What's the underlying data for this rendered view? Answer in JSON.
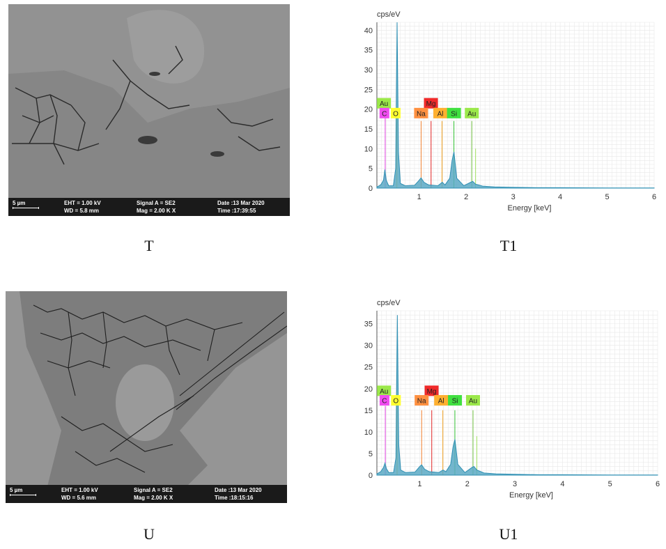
{
  "panels": [
    {
      "caption": "T",
      "sem": {
        "scale": "5 µm",
        "eht": "EHT =  1.00 kV",
        "wd": "WD =  5.8 mm",
        "signal": "Signal A = SE2",
        "mag": "Mag =    2.00 K X",
        "date": "Date :13 Mar 2020",
        "time": "Time :17:39:55"
      }
    },
    {
      "caption": "U",
      "sem": {
        "scale": "5 µm",
        "eht": "EHT =  1.00 kV",
        "wd": "WD =  5.6 mm",
        "signal": "Signal A = SE2",
        "mag": "Mag =    2.00 K X",
        "date": "Date :13 Mar 2020",
        "time": "Time :18:15:16"
      }
    }
  ],
  "chart_data": [
    {
      "caption": "T1",
      "type": "line",
      "ylabel": "cps/eV",
      "xlabel": "Energy [keV]",
      "xlim": [
        0.1,
        6
      ],
      "ylim": [
        0,
        42
      ],
      "xticks": [
        1,
        2,
        3,
        4,
        5,
        6
      ],
      "yticks": [
        0,
        5,
        10,
        15,
        20,
        25,
        30,
        35,
        40
      ],
      "grid": true,
      "fill_color": "#5aa9c4",
      "line_color": "#2e8fb3",
      "x": [
        0.1,
        0.18,
        0.24,
        0.27,
        0.3,
        0.35,
        0.45,
        0.5,
        0.53,
        0.56,
        0.6,
        0.7,
        0.9,
        1.0,
        1.04,
        1.1,
        1.2,
        1.4,
        1.49,
        1.55,
        1.65,
        1.7,
        1.74,
        1.8,
        1.95,
        2.1,
        2.14,
        2.2,
        2.35,
        2.6,
        3.0,
        3.5,
        4.0,
        5.0,
        6.0
      ],
      "series": [
        {
          "values": [
            0.3,
            0.8,
            2,
            4.7,
            2,
            0.6,
            0.6,
            5,
            42,
            9,
            1.2,
            0.6,
            0.7,
            2,
            2.6,
            1.5,
            0.8,
            0.6,
            1.5,
            0.8,
            2.5,
            7,
            9.2,
            2.5,
            0.6,
            1.5,
            1.7,
            1,
            0.5,
            0.3,
            0.2,
            0.1,
            0.1,
            0.05,
            0.05
          ]
        }
      ],
      "element_lines": [
        {
          "label": "C",
          "x": 0.277,
          "color": "#e040e0",
          "height": 19
        },
        {
          "label": "O",
          "x": 0.525,
          "color": "#e0d000",
          "height": 19
        },
        {
          "label": "Na",
          "x": 1.041,
          "color": "#f08030",
          "height": 17
        },
        {
          "label": "Mg",
          "x": 1.253,
          "color": "#e02020",
          "height": 17
        },
        {
          "label": "Al",
          "x": 1.486,
          "color": "#f0a020",
          "height": 17
        },
        {
          "label": "Si",
          "x": 1.739,
          "color": "#30c030",
          "height": 17
        },
        {
          "label": "Au",
          "x": 2.12,
          "color": "#70c040",
          "height": 17
        },
        {
          "label": "Au",
          "x": 2.2,
          "color": "#a0e060",
          "height": 10
        }
      ],
      "annotations": [
        {
          "text": "Au",
          "x": 0.25,
          "y": 21.5,
          "color": "#9be84a"
        },
        {
          "text": "C",
          "x": 0.26,
          "y": 19,
          "color": "#f04cf0"
        },
        {
          "text": "O",
          "x": 0.5,
          "y": 19,
          "color": "#ffff30"
        },
        {
          "text": "Mg",
          "x": 1.25,
          "y": 21.5,
          "color": "#f02a2a"
        },
        {
          "text": "Na",
          "x": 1.04,
          "y": 19,
          "color": "#ff9040"
        },
        {
          "text": "Al",
          "x": 1.45,
          "y": 19,
          "color": "#ffb030"
        },
        {
          "text": "Si",
          "x": 1.74,
          "y": 19,
          "color": "#40e040"
        },
        {
          "text": "Au",
          "x": 2.12,
          "y": 19,
          "color": "#9be84a"
        }
      ]
    },
    {
      "caption": "U1",
      "type": "line",
      "ylabel": "cps/eV",
      "xlabel": "Energy [keV]",
      "xlim": [
        0.1,
        6
      ],
      "ylim": [
        0,
        38
      ],
      "xticks": [
        1,
        2,
        3,
        4,
        5,
        6
      ],
      "yticks": [
        0,
        5,
        10,
        15,
        20,
        25,
        30,
        35
      ],
      "grid": true,
      "fill_color": "#5aa9c4",
      "line_color": "#2e8fb3",
      "x": [
        0.1,
        0.18,
        0.24,
        0.27,
        0.3,
        0.35,
        0.45,
        0.5,
        0.53,
        0.56,
        0.6,
        0.7,
        0.9,
        1.0,
        1.04,
        1.1,
        1.2,
        1.4,
        1.49,
        1.55,
        1.65,
        1.7,
        1.74,
        1.8,
        1.95,
        2.1,
        2.14,
        2.2,
        2.35,
        2.6,
        3.0,
        3.5,
        4.0,
        5.0,
        6.0
      ],
      "series": [
        {
          "values": [
            0.3,
            0.8,
            1.8,
            2.8,
            1.5,
            0.6,
            0.6,
            4,
            37,
            7,
            1.2,
            0.6,
            0.7,
            2,
            2.4,
            1.4,
            0.8,
            0.6,
            1.2,
            0.8,
            2.5,
            6.5,
            8.3,
            2.5,
            0.6,
            1.8,
            2,
            1.2,
            0.5,
            0.3,
            0.2,
            0.1,
            0.1,
            0.05,
            0.05
          ]
        }
      ],
      "element_lines": [
        {
          "label": "C",
          "x": 0.277,
          "color": "#e040e0",
          "height": 16
        },
        {
          "label": "O",
          "x": 0.525,
          "color": "#e0d000",
          "height": 16
        },
        {
          "label": "Na",
          "x": 1.041,
          "color": "#f08030",
          "height": 15
        },
        {
          "label": "Mg",
          "x": 1.253,
          "color": "#e02020",
          "height": 15
        },
        {
          "label": "Al",
          "x": 1.486,
          "color": "#f0a020",
          "height": 15
        },
        {
          "label": "Si",
          "x": 1.739,
          "color": "#30c030",
          "height": 15
        },
        {
          "label": "Au",
          "x": 2.12,
          "color": "#70c040",
          "height": 15
        },
        {
          "label": "Au",
          "x": 2.2,
          "color": "#a0e060",
          "height": 9
        }
      ],
      "annotations": [
        {
          "text": "Au",
          "x": 0.25,
          "y": 19.5,
          "color": "#9be84a"
        },
        {
          "text": "C",
          "x": 0.26,
          "y": 17.3,
          "color": "#f04cf0"
        },
        {
          "text": "O",
          "x": 0.5,
          "y": 17.3,
          "color": "#ffff30"
        },
        {
          "text": "Mg",
          "x": 1.25,
          "y": 19.5,
          "color": "#f02a2a"
        },
        {
          "text": "Na",
          "x": 1.04,
          "y": 17.3,
          "color": "#ff9040"
        },
        {
          "text": "Al",
          "x": 1.45,
          "y": 17.3,
          "color": "#ffb030"
        },
        {
          "text": "Si",
          "x": 1.74,
          "y": 17.3,
          "color": "#40e040"
        },
        {
          "text": "Au",
          "x": 2.12,
          "y": 17.3,
          "color": "#9be84a"
        }
      ]
    }
  ]
}
